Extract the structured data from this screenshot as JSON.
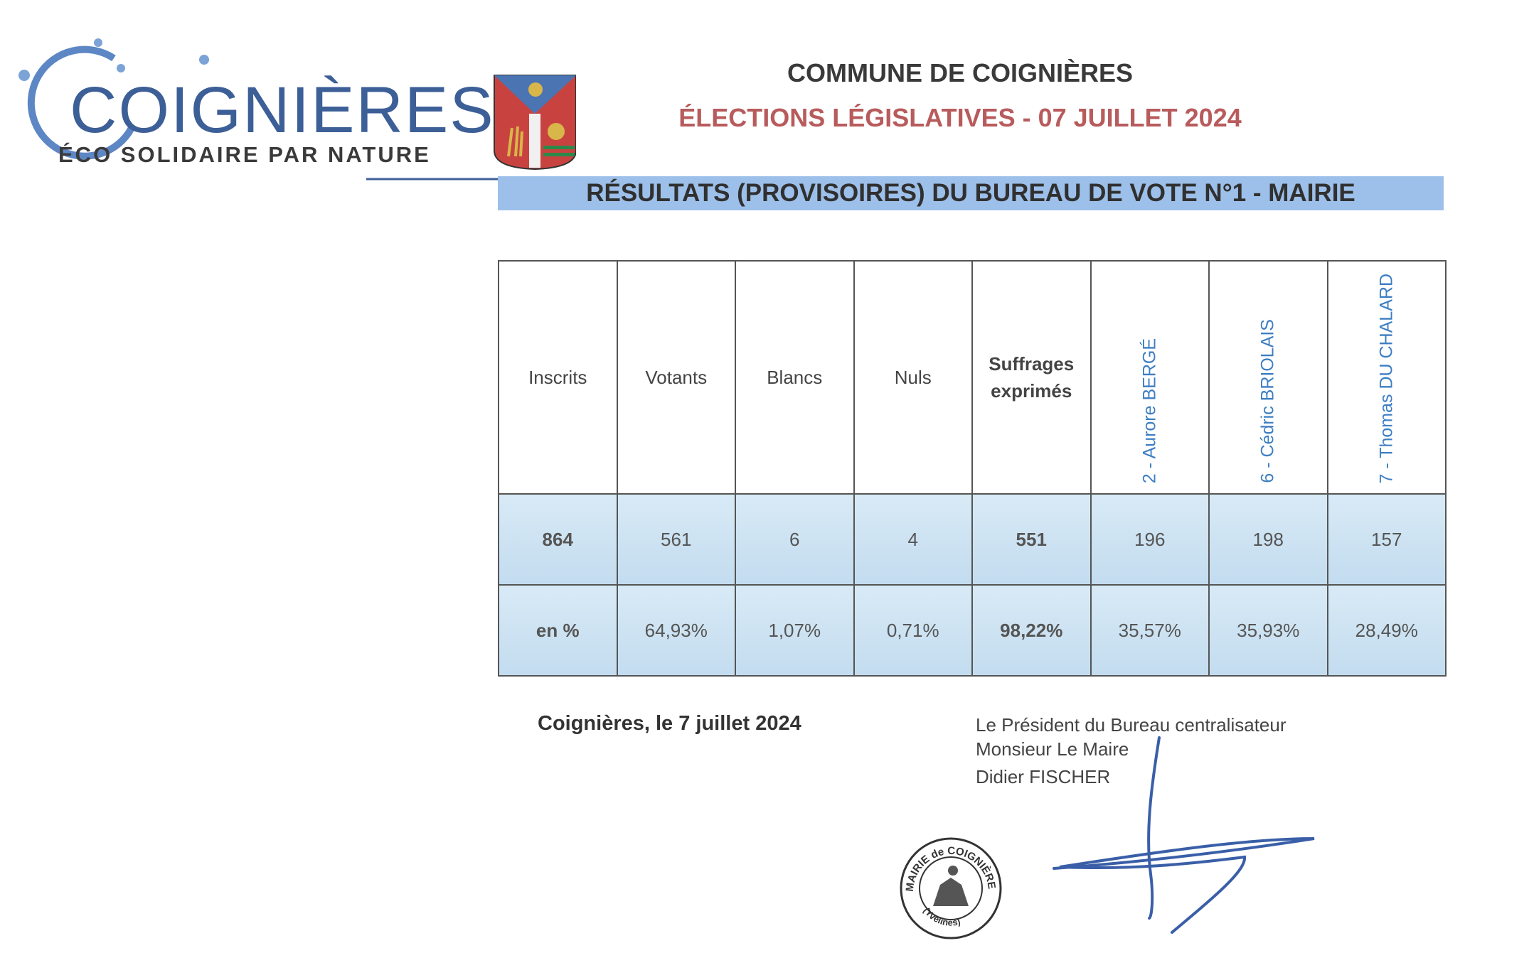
{
  "logo": {
    "name": "COIGNIÈRES",
    "tagline": "ÉCO SOLIDAIRE PAR NATURE",
    "crest": "coat-of-arms"
  },
  "header": {
    "commune": "COMMUNE DE COIGNIÈRES",
    "election": "ÉLECTIONS LÉGISLATIVES - 07 JUILLET 2024",
    "banner": "RÉSULTATS (PROVISOIRES) DU BUREAU DE VOTE N°1 - MAIRIE"
  },
  "table": {
    "headers": [
      "Inscrits",
      "Votants",
      "Blancs",
      "Nuls"
    ],
    "suffrages_line1": "Suffrages",
    "suffrages_line2": "exprimés",
    "candidates": [
      "2 - Aurore BERGÉ",
      "6 - Cédric BRIOLAIS",
      "7 - Thomas DU CHALARD"
    ],
    "counts": [
      "864",
      "561",
      "6",
      "4",
      "551",
      "196",
      "198",
      "157"
    ],
    "pct_label": "en %",
    "percents": [
      "64,93%",
      "1,07%",
      "0,71%",
      "98,22%",
      "35,57%",
      "35,93%",
      "28,49%"
    ]
  },
  "footer": {
    "place_date": "Coignières, le 7 juillet 2024",
    "president_title": "Le Président du Bureau centralisateur",
    "president_role": "Monsieur Le Maire",
    "president_name": "Didier FISCHER"
  },
  "seal": {
    "text": "MAIRIE de COIGNIÈRES",
    "bottom": "(Yvelines)"
  },
  "colors": {
    "accent_blue": "#3d7ec2",
    "election_red": "#b85b5c",
    "banner_blue": "#9dc0ea"
  }
}
